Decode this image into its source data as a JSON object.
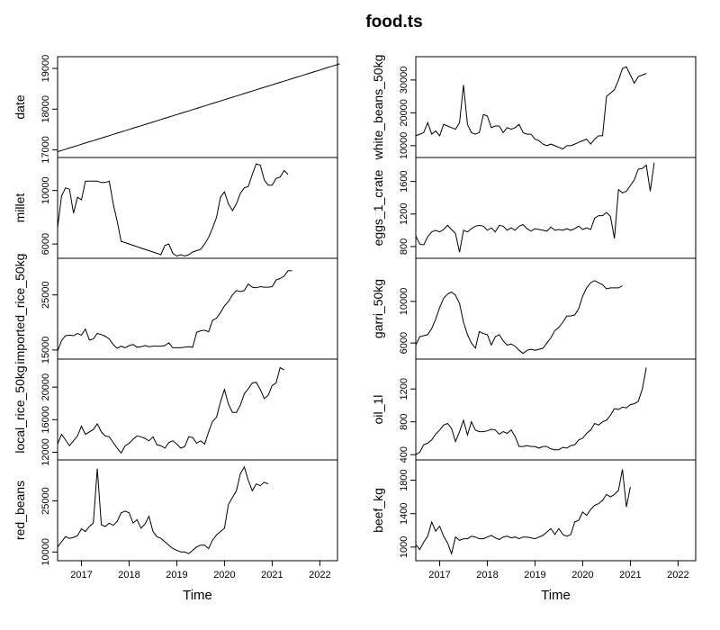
{
  "chart_data": {
    "type": "line",
    "title": "food.ts",
    "xlabel": "Time",
    "x_start": 2016.5,
    "x_step": 0.08333,
    "xlim": [
      2016.5,
      2022.37
    ],
    "x_ticks": [
      2017,
      2018,
      2019,
      2020,
      2021,
      2022
    ],
    "grid": false,
    "legend": "none",
    "line_color": "#000000",
    "series": [
      {
        "name": "date",
        "ylim": [
          16900,
          19200
        ],
        "y_ticks": [
          17000,
          18000,
          19000
        ],
        "values": [
          16953,
          16984,
          17014,
          17045,
          17075,
          17106,
          17136,
          17167,
          17198,
          17226,
          17257,
          17287,
          17318,
          17348,
          17379,
          17410,
          17440,
          17471,
          17501,
          17532,
          17563,
          17591,
          17622,
          17652,
          17683,
          17713,
          17744,
          17775,
          17805,
          17836,
          17866,
          17897,
          17928,
          17956,
          17987,
          18017,
          18048,
          18078,
          18109,
          18140,
          18170,
          18201,
          18231,
          18262,
          18293,
          18322,
          18353,
          18383,
          18414,
          18444,
          18475,
          18506,
          18536,
          18567,
          18597,
          18628,
          18659,
          18687,
          18718,
          18748,
          18779,
          18809,
          18840,
          18871,
          18901,
          18932,
          18962,
          18993,
          19024,
          19052,
          19083,
          19113
        ]
      },
      {
        "name": "millet",
        "ylim": [
          5200,
          12200
        ],
        "y_ticks": [
          6000,
          10000
        ],
        "values": [
          7200,
          9600,
          10200,
          10100,
          8300,
          9500,
          9300,
          10700,
          10700,
          10700,
          10700,
          10600,
          10600,
          10700,
          9000,
          7700,
          6200,
          6100,
          6000,
          5900,
          5800,
          5700,
          5600,
          5500,
          5400,
          5300,
          5200,
          5900,
          6000,
          5300,
          5100,
          5200,
          5100,
          5200,
          5400,
          5500,
          5600,
          6000,
          6500,
          7200,
          8000,
          9500,
          9900,
          9000,
          8500,
          9000,
          9800,
          10200,
          10300,
          11200,
          12000,
          11900,
          10800,
          10400,
          10400,
          10900,
          11000,
          11500,
          11200
        ]
      },
      {
        "name": "imported_rice_50kg",
        "ylim": [
          14000,
          31000
        ],
        "y_ticks": [
          15000,
          25000
        ],
        "values": [
          14800,
          16700,
          17600,
          17700,
          17600,
          18000,
          17700,
          18800,
          16800,
          17000,
          18000,
          17800,
          17500,
          17000,
          16000,
          15300,
          15700,
          15400,
          15800,
          16000,
          15500,
          15600,
          15800,
          15600,
          15700,
          15700,
          15700,
          15800,
          16300,
          15400,
          15400,
          15400,
          15500,
          15600,
          15500,
          18200,
          18500,
          18600,
          18300,
          20400,
          20800,
          21800,
          23000,
          23800,
          25000,
          25800,
          25600,
          25800,
          27000,
          26400,
          26300,
          26500,
          26400,
          26400,
          26500,
          27700,
          28000,
          28400,
          29400,
          29400
        ]
      },
      {
        "name": "local_rice_50kg",
        "ylim": [
          11500,
          23000
        ],
        "y_ticks": [
          12000,
          16000,
          20000
        ],
        "values": [
          13000,
          14200,
          13500,
          12800,
          13400,
          14000,
          15200,
          14200,
          14500,
          14800,
          15500,
          14500,
          14000,
          13900,
          13200,
          12500,
          11900,
          12800,
          13100,
          13600,
          14000,
          13900,
          13700,
          13400,
          13900,
          12900,
          12800,
          12500,
          13200,
          13400,
          13000,
          12500,
          12700,
          13900,
          13800,
          13100,
          13400,
          13000,
          14500,
          15800,
          16300,
          18200,
          19700,
          17900,
          16900,
          16900,
          17800,
          19200,
          19800,
          20500,
          20600,
          19700,
          18600,
          19000,
          20200,
          20500,
          22400,
          22100
        ]
      },
      {
        "name": "red_beans",
        "ylim": [
          8500,
          36000
        ],
        "y_ticks": [
          10000,
          25000
        ],
        "values": [
          11500,
          13000,
          14500,
          14000,
          14300,
          14800,
          16800,
          16000,
          17500,
          18500,
          34500,
          18000,
          17500,
          18500,
          17800,
          19000,
          21500,
          22000,
          21500,
          18500,
          19500,
          17000,
          18200,
          20500,
          16000,
          14500,
          14000,
          13000,
          12000,
          11000,
          10500,
          10000,
          10000,
          9500,
          10500,
          11500,
          12000,
          12000,
          11000,
          13500,
          15000,
          16000,
          17000,
          24000,
          26000,
          28000,
          33000,
          35000,
          31000,
          28000,
          30000,
          29500,
          30500,
          30000
        ]
      },
      {
        "name": "white_beans_50kg",
        "ylim": [
          7500,
          36000
        ],
        "y_ticks": [
          10000,
          20000,
          30000
        ],
        "values": [
          13000,
          13500,
          14000,
          17000,
          13500,
          14500,
          13000,
          16500,
          16000,
          15500,
          15000,
          17000,
          28500,
          16500,
          14000,
          13500,
          14000,
          19500,
          19000,
          15500,
          16000,
          16000,
          14000,
          15500,
          15000,
          15500,
          16500,
          14000,
          13500,
          13500,
          12000,
          11500,
          10500,
          10000,
          10500,
          10000,
          9500,
          9000,
          10000,
          10000,
          10500,
          11000,
          11500,
          12000,
          10500,
          12000,
          13000,
          13000,
          25000,
          26000,
          27000,
          30000,
          33500,
          34000,
          31500,
          29000,
          31000,
          31500,
          32000
        ]
      },
      {
        "name": "eggs_1_crate",
        "ylim": [
          700,
          1850
        ],
        "y_ticks": [
          800,
          1200,
          1600
        ],
        "values": [
          930,
          830,
          820,
          920,
          980,
          1000,
          980,
          1010,
          1060,
          1010,
          960,
          730,
          1000,
          980,
          1020,
          1050,
          1060,
          1050,
          1000,
          1030,
          980,
          1060,
          1050,
          1000,
          1030,
          1000,
          1050,
          1070,
          1020,
          990,
          1020,
          1010,
          1000,
          990,
          1040,
          1000,
          1010,
          1000,
          1020,
          1000,
          1020,
          1050,
          1010,
          1030,
          1010,
          1150,
          1180,
          1180,
          1220,
          1170,
          900,
          1500,
          1460,
          1480,
          1550,
          1620,
          1750,
          1760,
          1800,
          1480,
          1830
        ]
      },
      {
        "name": "garri_50kg",
        "ylim": [
          4800,
          13800
        ],
        "y_ticks": [
          6000,
          10000
        ],
        "values": [
          5800,
          6600,
          6700,
          6800,
          7400,
          8300,
          9400,
          10300,
          10700,
          10900,
          10600,
          9800,
          8000,
          6800,
          6000,
          5500,
          7100,
          6900,
          6800,
          5800,
          6600,
          6800,
          6200,
          5800,
          5900,
          5700,
          5300,
          5000,
          5300,
          5400,
          5300,
          5400,
          5500,
          6000,
          6500,
          7200,
          7500,
          8000,
          8600,
          8600,
          8700,
          9300,
          10500,
          11300,
          11800,
          12000,
          11800,
          11600,
          11200,
          11300,
          11300,
          11300,
          11500
        ]
      },
      {
        "name": "oil_1l",
        "ylim": [
          380,
          1520
        ],
        "y_ticks": [
          400,
          800,
          1200
        ],
        "values": [
          400,
          430,
          520,
          540,
          580,
          650,
          700,
          760,
          780,
          720,
          560,
          680,
          820,
          640,
          800,
          700,
          680,
          680,
          690,
          710,
          700,
          650,
          680,
          660,
          700,
          620,
          500,
          500,
          510,
          500,
          500,
          480,
          500,
          500,
          470,
          460,
          460,
          490,
          480,
          510,
          520,
          580,
          600,
          660,
          700,
          780,
          760,
          800,
          820,
          880,
          960,
          950,
          980,
          970,
          1010,
          1020,
          1050,
          1200,
          1460
        ]
      },
      {
        "name": "beef_kg",
        "ylim": [
          880,
          2000
        ],
        "y_ticks": [
          1000,
          1400,
          1800
        ],
        "values": [
          1030,
          970,
          1060,
          1130,
          1300,
          1190,
          1250,
          1130,
          1050,
          920,
          1120,
          1080,
          1100,
          1100,
          1130,
          1120,
          1100,
          1100,
          1120,
          1140,
          1110,
          1090,
          1120,
          1130,
          1110,
          1120,
          1100,
          1120,
          1120,
          1110,
          1100,
          1120,
          1140,
          1180,
          1220,
          1150,
          1220,
          1150,
          1130,
          1150,
          1300,
          1320,
          1420,
          1380,
          1450,
          1500,
          1520,
          1560,
          1630,
          1600,
          1630,
          1680,
          1930,
          1480,
          1720
        ]
      }
    ]
  }
}
